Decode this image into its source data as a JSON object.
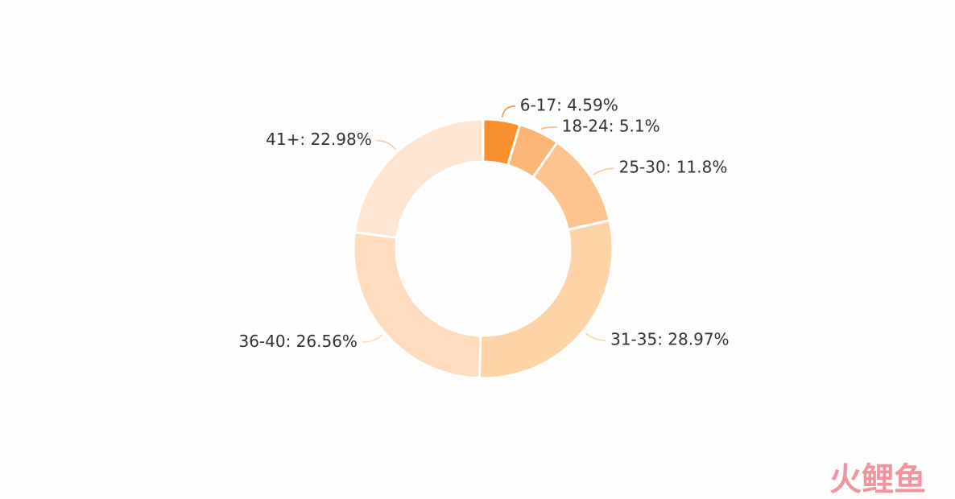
{
  "chart_data": {
    "type": "pie",
    "value_labels": [
      "6-17: 4.59%",
      "18-24: 5.1%",
      "25-30: 11.8%",
      "31-35: 28.97%",
      "36-40: 26.56%",
      "41+: 22.98%"
    ],
    "values": [
      4.59,
      5.1,
      11.8,
      28.97,
      26.56,
      22.98
    ],
    "colors": [
      "#f98e2c",
      "#fbb577",
      "#fcc38f",
      "#fdd3a7",
      "#fedcbd",
      "#fee6d2"
    ],
    "watermark": "火鲤鱼"
  }
}
